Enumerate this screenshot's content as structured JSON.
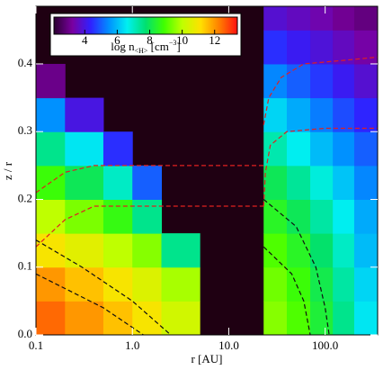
{
  "chart_data": {
    "type": "heatmap",
    "xlabel": "r [AU]",
    "ylabel": "z / r",
    "xlog": true,
    "xlim": [
      0.1,
      350
    ],
    "ylim": [
      0,
      0.485
    ],
    "xticks": [
      0.1,
      {
        "value": 1,
        "label": "1.0"
      },
      {
        "value": 10,
        "label": "10.0"
      },
      {
        "value": 100,
        "label": "100.0"
      }
    ],
    "yticks": [
      {
        "value": 0,
        "label": "0.0"
      },
      0.1,
      0.2,
      0.3,
      0.4
    ],
    "background": "#1f0012",
    "x": [
      0.1,
      0.2,
      0.5,
      1,
      2,
      5,
      23,
      40,
      70,
      120,
      200,
      350
    ],
    "y": [
      0,
      0.05,
      0.1,
      0.15,
      0.2,
      0.25,
      0.3,
      0.35,
      0.4,
      0.45,
      0.485
    ],
    "z": [
      [
        12.5,
        12,
        11.5,
        11,
        10.3,
        null,
        9.5,
        9,
        8.3,
        7.5,
        6.5
      ],
      [
        12,
        11.5,
        11,
        10.5,
        9.8,
        null,
        9.3,
        8.8,
        8.1,
        7.3,
        6.3
      ],
      [
        11,
        10.6,
        10,
        9.5,
        7.5,
        null,
        9,
        8.5,
        7.8,
        7,
        6
      ],
      [
        10,
        9.4,
        8.7,
        7.5,
        null,
        null,
        8.5,
        8,
        7.3,
        6.6,
        5.8
      ],
      [
        8.8,
        8,
        7,
        5,
        null,
        null,
        8,
        7.4,
        6.8,
        6.1,
        5.4
      ],
      [
        7.5,
        6.5,
        4.5,
        null,
        null,
        null,
        7.2,
        6.6,
        6,
        5.5,
        5
      ],
      [
        5.5,
        4,
        null,
        null,
        null,
        null,
        6.3,
        5.8,
        5.3,
        4.8,
        4.4
      ],
      [
        3,
        null,
        null,
        null,
        null,
        null,
        5.4,
        5,
        4.6,
        4.2,
        3.8
      ],
      [
        null,
        null,
        null,
        null,
        null,
        null,
        4.5,
        4.2,
        3.9,
        3.6,
        3.3
      ],
      [
        null,
        null,
        null,
        null,
        null,
        null,
        3.8,
        3.6,
        3.4,
        3.1,
        2.9
      ]
    ],
    "colormap": [
      "#2a0030",
      "#7a00a0",
      "#3020ff",
      "#0090ff",
      "#00f0f0",
      "#00e070",
      "#40ff00",
      "#c0ff00",
      "#ffe000",
      "#ff8000",
      "#ff1010"
    ],
    "clim": [
      2.1,
      13.4
    ],
    "cticks": [
      4,
      6,
      8,
      10,
      12
    ],
    "colorbar_label": {
      "main": "log n",
      "sub": "<H>",
      "unit": " [cm",
      "sup": "−3",
      "end": "]"
    },
    "contours": [
      {
        "color": "#e02020",
        "x": [
          0.1,
          0.2,
          0.4,
          1,
          5,
          23
        ],
        "y": [
          0.21,
          0.24,
          0.25,
          0.25,
          0.25,
          0.25
        ]
      },
      {
        "color": "#e02020",
        "x": [
          0.1,
          0.2,
          0.4,
          1,
          5,
          23
        ],
        "y": [
          0.13,
          0.17,
          0.19,
          0.19,
          0.19,
          0.19
        ]
      },
      {
        "color": "#e02020",
        "x": [
          23,
          24,
          27,
          40,
          100,
          350
        ],
        "y": [
          0.19,
          0.24,
          0.28,
          0.3,
          0.305,
          0.305
        ]
      },
      {
        "color": "#e02020",
        "x": [
          23,
          26,
          35,
          60,
          150,
          350
        ],
        "y": [
          0.31,
          0.35,
          0.38,
          0.4,
          0.405,
          0.41
        ]
      },
      {
        "color": "#101010",
        "x": [
          0.1,
          0.3,
          1,
          2.5
        ],
        "y": [
          0.14,
          0.1,
          0.05,
          0
        ]
      },
      {
        "color": "#101010",
        "x": [
          0.1,
          0.5,
          1.3
        ],
        "y": [
          0.09,
          0.04,
          0
        ]
      },
      {
        "color": "#101010",
        "x": [
          23,
          50,
          80,
          100,
          110
        ],
        "y": [
          0.2,
          0.16,
          0.1,
          0.04,
          0
        ]
      },
      {
        "color": "#101010",
        "x": [
          23,
          45,
          60,
          70
        ],
        "y": [
          0.13,
          0.09,
          0.05,
          0
        ]
      }
    ]
  }
}
